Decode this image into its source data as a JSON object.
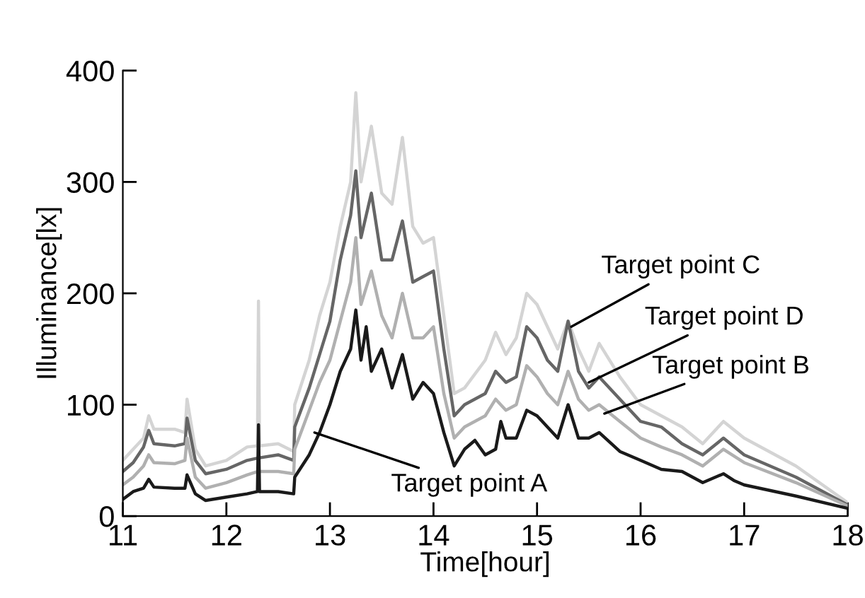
{
  "chart_data": {
    "type": "line",
    "xlabel": "Time[hour]",
    "ylabel": "Illuminance[lx]",
    "xlim": [
      11,
      18
    ],
    "ylim": [
      0,
      400
    ],
    "xticks": [
      11,
      12,
      13,
      14,
      15,
      16,
      17,
      18
    ],
    "yticks": [
      0,
      100,
      200,
      300,
      400
    ],
    "grid": false,
    "legend": false,
    "marker": "none",
    "line_style": "solid",
    "series": [
      {
        "color": "#d4d4d4",
        "x": [
          11.0,
          11.1,
          11.2,
          11.25,
          11.3,
          11.5,
          11.6,
          11.62,
          11.7,
          11.8,
          12.0,
          12.2,
          12.3,
          12.31,
          12.32,
          12.5,
          12.65,
          12.66,
          12.8,
          12.9,
          13.0,
          13.1,
          13.2,
          13.25,
          13.3,
          13.4,
          13.5,
          13.6,
          13.7,
          13.8,
          13.9,
          14.0,
          14.1,
          14.2,
          14.3,
          14.5,
          14.6,
          14.7,
          14.8,
          14.9,
          15.0,
          15.1,
          15.2,
          15.3,
          15.4,
          15.5,
          15.6,
          15.8,
          16.0,
          16.2,
          16.4,
          16.6,
          16.8,
          17.0,
          17.5,
          18.0
        ],
        "values": [
          50,
          60,
          70,
          90,
          78,
          78,
          75,
          105,
          60,
          45,
          50,
          62,
          63,
          193,
          63,
          65,
          58,
          100,
          140,
          180,
          210,
          260,
          300,
          380,
          300,
          350,
          290,
          280,
          340,
          260,
          245,
          250,
          180,
          110,
          115,
          140,
          165,
          145,
          160,
          200,
          190,
          170,
          150,
          175,
          150,
          130,
          155,
          125,
          100,
          90,
          80,
          65,
          85,
          70,
          45,
          12
        ]
      },
      {
        "color": "#666666",
        "x": [
          11.0,
          11.1,
          11.2,
          11.25,
          11.3,
          11.5,
          11.6,
          11.62,
          11.7,
          11.8,
          12.0,
          12.2,
          12.3,
          12.5,
          12.65,
          12.66,
          12.8,
          12.9,
          13.0,
          13.1,
          13.2,
          13.25,
          13.3,
          13.4,
          13.5,
          13.6,
          13.7,
          13.8,
          13.9,
          14.0,
          14.1,
          14.2,
          14.3,
          14.5,
          14.6,
          14.7,
          14.8,
          14.9,
          15.0,
          15.1,
          15.2,
          15.3,
          15.4,
          15.5,
          15.6,
          15.8,
          16.0,
          16.2,
          16.4,
          16.6,
          16.8,
          17.0,
          17.5,
          18.0
        ],
        "values": [
          40,
          48,
          62,
          77,
          65,
          63,
          65,
          88,
          50,
          38,
          42,
          50,
          52,
          55,
          50,
          80,
          115,
          145,
          175,
          230,
          270,
          310,
          250,
          290,
          230,
          230,
          265,
          210,
          215,
          220,
          150,
          90,
          100,
          110,
          130,
          120,
          125,
          170,
          160,
          140,
          130,
          175,
          130,
          115,
          125,
          105,
          85,
          80,
          65,
          55,
          70,
          55,
          35,
          10
        ]
      },
      {
        "color": "#b0b0b0",
        "x": [
          11.0,
          11.1,
          11.2,
          11.25,
          11.3,
          11.5,
          11.6,
          11.62,
          11.7,
          11.8,
          12.0,
          12.2,
          12.3,
          12.5,
          12.65,
          12.66,
          12.8,
          12.9,
          13.0,
          13.1,
          13.2,
          13.25,
          13.3,
          13.4,
          13.5,
          13.6,
          13.7,
          13.8,
          13.9,
          14.0,
          14.1,
          14.2,
          14.3,
          14.5,
          14.6,
          14.7,
          14.8,
          14.9,
          15.0,
          15.1,
          15.2,
          15.3,
          15.4,
          15.5,
          15.6,
          15.8,
          16.0,
          16.2,
          16.4,
          16.6,
          16.8,
          17.0,
          17.5,
          18.0
        ],
        "values": [
          28,
          35,
          45,
          55,
          48,
          47,
          50,
          70,
          35,
          25,
          30,
          37,
          40,
          40,
          38,
          60,
          95,
          120,
          140,
          175,
          210,
          250,
          190,
          220,
          180,
          160,
          200,
          160,
          160,
          170,
          110,
          70,
          80,
          90,
          105,
          95,
          100,
          135,
          125,
          110,
          100,
          130,
          105,
          95,
          100,
          85,
          70,
          62,
          55,
          45,
          60,
          48,
          30,
          9
        ]
      },
      {
        "color": "#1a1a1a",
        "x": [
          11.0,
          11.1,
          11.2,
          11.25,
          11.3,
          11.5,
          11.6,
          11.62,
          11.7,
          11.8,
          12.0,
          12.2,
          12.3,
          12.31,
          12.32,
          12.5,
          12.65,
          12.66,
          12.8,
          12.9,
          13.0,
          13.1,
          13.2,
          13.25,
          13.3,
          13.35,
          13.4,
          13.5,
          13.6,
          13.7,
          13.8,
          13.9,
          14.0,
          14.1,
          14.2,
          14.3,
          14.4,
          14.5,
          14.6,
          14.65,
          14.7,
          14.8,
          14.9,
          15.0,
          15.1,
          15.2,
          15.3,
          15.35,
          15.4,
          15.5,
          15.6,
          15.8,
          16.0,
          16.2,
          16.4,
          16.6,
          16.8,
          16.9,
          17.0,
          17.5,
          18.0
        ],
        "values": [
          15,
          22,
          25,
          33,
          26,
          25,
          25,
          37,
          20,
          14,
          17,
          20,
          22,
          82,
          22,
          22,
          20,
          35,
          55,
          75,
          100,
          130,
          150,
          185,
          140,
          170,
          130,
          150,
          115,
          145,
          105,
          120,
          110,
          75,
          45,
          60,
          68,
          55,
          60,
          85,
          70,
          70,
          95,
          90,
          80,
          70,
          100,
          85,
          70,
          70,
          75,
          58,
          50,
          42,
          40,
          30,
          38,
          32,
          28,
          18,
          7
        ]
      }
    ],
    "annotations": [
      {
        "text": "Target point A",
        "x": 12.85,
        "y": 75
      },
      {
        "text": "Target point C",
        "x": 15.33,
        "y": 170
      },
      {
        "text": "Target point D",
        "x": 15.5,
        "y": 120
      },
      {
        "text": "Target point B",
        "x": 15.65,
        "y": 92
      }
    ]
  }
}
